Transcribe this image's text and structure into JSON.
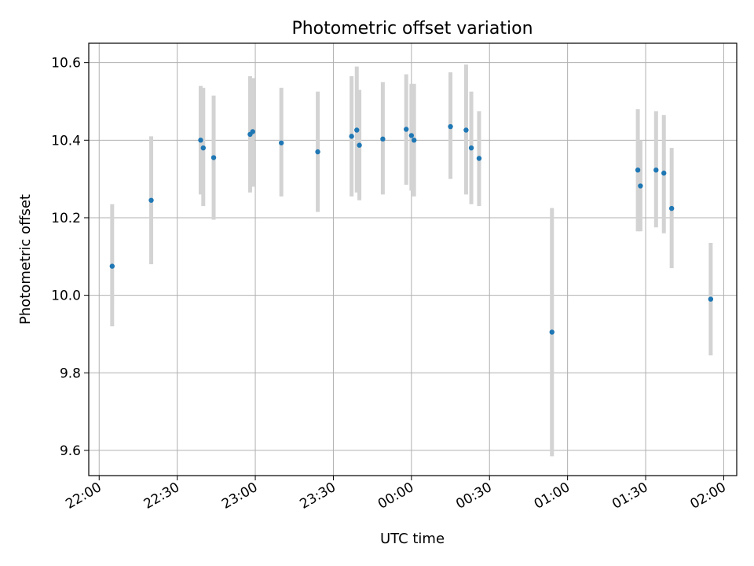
{
  "chart_data": {
    "type": "scatter",
    "title": "Photometric offset variation",
    "xlabel": "UTC time",
    "ylabel": "Photometric offset",
    "xlim": [
      "21:56",
      "02:05"
    ],
    "ylim": [
      9.535,
      10.65
    ],
    "x_ticks": [
      "22:00",
      "22:30",
      "23:00",
      "23:30",
      "00:00",
      "00:30",
      "01:00",
      "01:30",
      "02:00"
    ],
    "y_ticks": [
      9.6,
      9.8,
      10.0,
      10.2,
      10.4,
      10.6
    ],
    "grid": true,
    "colors": {
      "points": "#1f77b4",
      "error_bars": "#d3d3d3",
      "grid": "#b0b0b0"
    },
    "series": [
      {
        "points": [
          {
            "x": "22:05",
            "y": 10.075,
            "lo": 9.92,
            "hi": 10.235
          },
          {
            "x": "22:20",
            "y": 10.245,
            "lo": 10.08,
            "hi": 10.41
          },
          {
            "x": "22:39",
            "y": 10.4,
            "lo": 10.26,
            "hi": 10.54
          },
          {
            "x": "22:40",
            "y": 10.38,
            "lo": 10.23,
            "hi": 10.535
          },
          {
            "x": "22:44",
            "y": 10.355,
            "lo": 10.195,
            "hi": 10.515
          },
          {
            "x": "22:58",
            "y": 10.415,
            "lo": 10.265,
            "hi": 10.565
          },
          {
            "x": "22:59",
            "y": 10.422,
            "lo": 10.28,
            "hi": 10.56
          },
          {
            "x": "23:10",
            "y": 10.393,
            "lo": 10.255,
            "hi": 10.535
          },
          {
            "x": "23:24",
            "y": 10.37,
            "lo": 10.215,
            "hi": 10.525
          },
          {
            "x": "23:37",
            "y": 10.41,
            "lo": 10.255,
            "hi": 10.565
          },
          {
            "x": "23:39",
            "y": 10.426,
            "lo": 10.265,
            "hi": 10.59
          },
          {
            "x": "23:40",
            "y": 10.387,
            "lo": 10.245,
            "hi": 10.53
          },
          {
            "x": "23:49",
            "y": 10.403,
            "lo": 10.26,
            "hi": 10.55
          },
          {
            "x": "23:58",
            "y": 10.428,
            "lo": 10.285,
            "hi": 10.57
          },
          {
            "x": "00:00",
            "y": 10.412,
            "lo": 10.27,
            "hi": 10.545
          },
          {
            "x": "00:01",
            "y": 10.4,
            "lo": 10.255,
            "hi": 10.545
          },
          {
            "x": "00:15",
            "y": 10.435,
            "lo": 10.3,
            "hi": 10.575
          },
          {
            "x": "00:21",
            "y": 10.426,
            "lo": 10.26,
            "hi": 10.595
          },
          {
            "x": "00:23",
            "y": 10.38,
            "lo": 10.235,
            "hi": 10.525
          },
          {
            "x": "00:26",
            "y": 10.353,
            "lo": 10.23,
            "hi": 10.475
          },
          {
            "x": "00:54",
            "y": 9.905,
            "lo": 9.585,
            "hi": 10.225
          },
          {
            "x": "01:27",
            "y": 10.323,
            "lo": 10.165,
            "hi": 10.48
          },
          {
            "x": "01:28",
            "y": 10.282,
            "lo": 10.165,
            "hi": 10.4
          },
          {
            "x": "01:34",
            "y": 10.323,
            "lo": 10.175,
            "hi": 10.475
          },
          {
            "x": "01:37",
            "y": 10.315,
            "lo": 10.16,
            "hi": 10.465
          },
          {
            "x": "01:40",
            "y": 10.224,
            "lo": 10.07,
            "hi": 10.38
          },
          {
            "x": "01:55",
            "y": 9.99,
            "lo": 9.845,
            "hi": 10.135
          }
        ]
      }
    ]
  }
}
